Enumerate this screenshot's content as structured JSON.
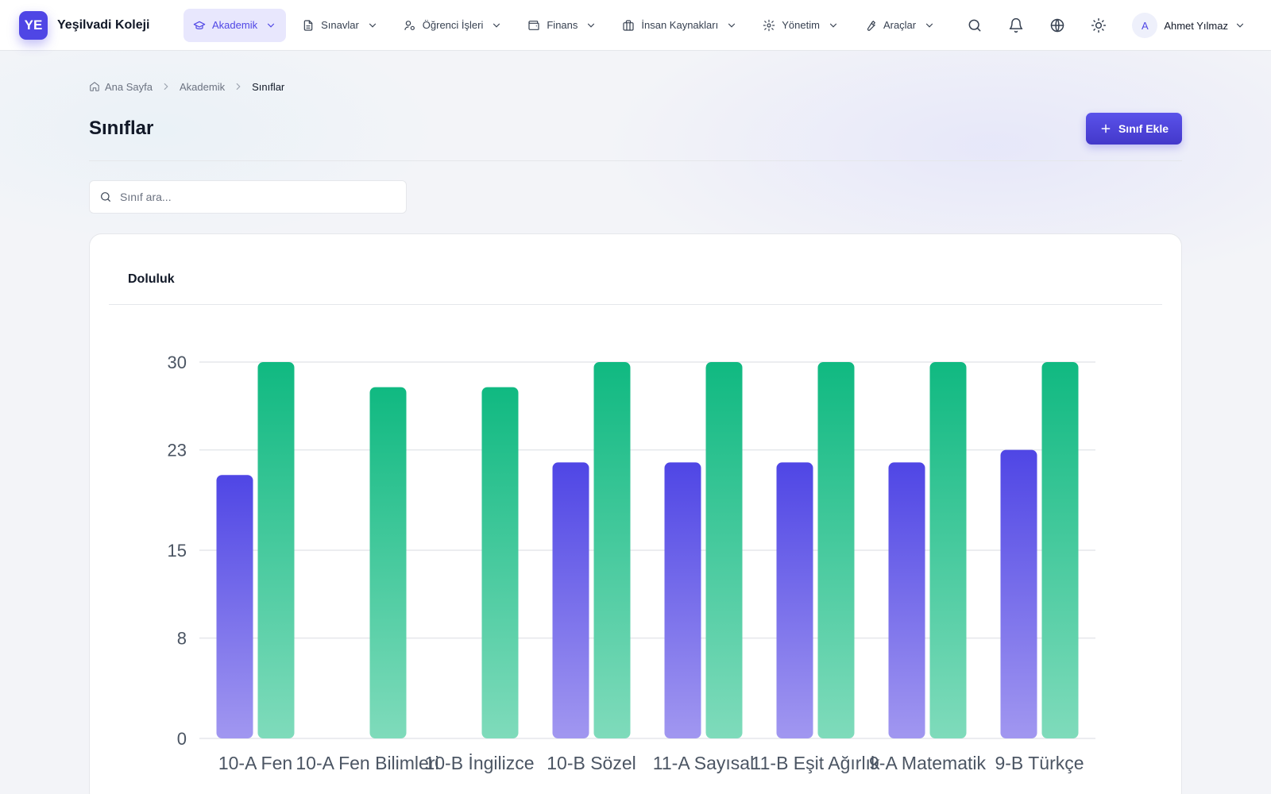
{
  "brand": {
    "logo": "YE",
    "name": "Yeşilvadi Koleji"
  },
  "nav": [
    {
      "label": "Akademik",
      "icon": "graduation-cap-icon",
      "active": true
    },
    {
      "label": "Sınavlar",
      "icon": "document-icon",
      "active": false
    },
    {
      "label": "Öğrenci İşleri",
      "icon": "user-gear-icon",
      "active": false
    },
    {
      "label": "Finans",
      "icon": "wallet-icon",
      "active": false
    },
    {
      "label": "İnsan Kaynakları",
      "icon": "briefcase-icon",
      "active": false
    },
    {
      "label": "Yönetim",
      "icon": "gear-icon",
      "active": false
    },
    {
      "label": "Araçlar",
      "icon": "wrench-icon",
      "active": false
    }
  ],
  "user": {
    "initial": "A",
    "name": "Ahmet Yılmaz"
  },
  "breadcrumb": {
    "home": "Ana Sayfa",
    "section": "Akademik",
    "current": "Sınıflar"
  },
  "page": {
    "title": "Sınıflar",
    "add_button": "Sınıf Ekle"
  },
  "search": {
    "placeholder": "Sınıf ara...",
    "value": ""
  },
  "card": {
    "title": "Doluluk"
  },
  "colors": {
    "accent": "#4f46e5",
    "series_a": "#4f46e5",
    "series_b": "#10b981"
  },
  "chart_data": {
    "type": "bar",
    "categories": [
      "10-A Fen",
      "10-A Fen Bilimleri",
      "10-B İngilizce",
      "10-B Sözel",
      "11-A Sayısal",
      "11-B Eşit Ağırlık",
      "9-A Matematik",
      "9-B Türkçe"
    ],
    "series": [
      {
        "values": [
          21,
          0,
          0,
          22,
          22,
          22,
          22,
          23
        ],
        "color": "#4f46e5"
      },
      {
        "values": [
          30,
          28,
          28,
          30,
          30,
          30,
          30,
          30
        ],
        "color": "#10b981"
      }
    ],
    "yticks": [
      0,
      8,
      15,
      23,
      30
    ],
    "ylim": [
      0,
      30
    ],
    "grid": true,
    "legend": "none"
  }
}
